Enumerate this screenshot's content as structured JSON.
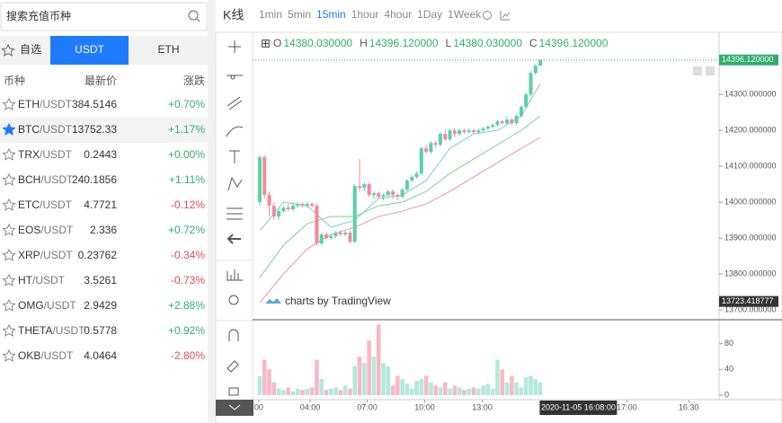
{
  "search": {
    "placeholder": "搜索充值币种"
  },
  "tabs": [
    "自选",
    "USDT",
    "ETH"
  ],
  "active_tab": 1,
  "table": {
    "headers": [
      "币种",
      "最新价",
      "涨跌"
    ],
    "selected_row": 1,
    "rows": [
      {
        "base": "ETH",
        "quote": "/USDT",
        "price": "384.5146",
        "change": "+0.70%"
      },
      {
        "base": "BTC",
        "quote": "/USDT",
        "price": "13752.33",
        "change": "+1.17%"
      },
      {
        "base": "TRX",
        "quote": "/USDT",
        "price": "0.2443",
        "change": "+0.00%"
      },
      {
        "base": "BCH",
        "quote": "/USDT",
        "price": "240.1856",
        "change": "+1.11%"
      },
      {
        "base": "ETC",
        "quote": "/USDT",
        "price": "4.7721",
        "change": "-0.12%"
      },
      {
        "base": "EOS",
        "quote": "/USDT",
        "price": "2.336",
        "change": "+0.72%"
      },
      {
        "base": "XRP",
        "quote": "/USDT",
        "price": "0.23762",
        "change": "-0.34%"
      },
      {
        "base": "HT",
        "quote": "/USDT",
        "price": "3.5261",
        "change": "-0.73%"
      },
      {
        "base": "OMG",
        "quote": "/USDT",
        "price": "2.9429",
        "change": "+2.88%"
      },
      {
        "base": "THETA",
        "quote": "/USDT",
        "price": "0.5778",
        "change": "+0.92%"
      },
      {
        "base": "OKB",
        "quote": "/USDT",
        "price": "4.0464",
        "change": "-2.80%"
      }
    ]
  },
  "toolbar": {
    "label": "K线",
    "intervals": [
      "1min",
      "5min",
      "15min",
      "1hour",
      "4hour",
      "1Day",
      "1Week"
    ],
    "active_interval": 2
  },
  "legend": [
    {
      "key": "O",
      "value": "14380.030000"
    },
    {
      "key": "H",
      "value": "14396.120000"
    },
    {
      "key": "L",
      "value": "14380.030000"
    },
    {
      "key": "C",
      "value": "14396.120000"
    }
  ],
  "watermark": "charts by TradingView",
  "chart_data": {
    "type": "candlestick",
    "open": [
      14000,
      14125,
      14020,
      13990,
      13960,
      13975,
      13985,
      13980,
      13990,
      13995,
      13990,
      13995,
      13990,
      13885,
      13910,
      13900,
      13905,
      13915,
      13910,
      13915,
      13890,
      14045,
      14040,
      14050,
      14020,
      14025,
      14015,
      14020,
      14030,
      14020,
      14015,
      14035,
      14060,
      14070,
      14080,
      14150,
      14140,
      14165,
      14160,
      14190,
      14175,
      14200,
      14190,
      14200,
      14195,
      14200,
      14195,
      14200,
      14205,
      14210,
      14215,
      14225,
      14220,
      14230,
      14220,
      14240,
      14265,
      14300,
      14360,
      14380
    ],
    "high": [
      14130,
      14130,
      14030,
      14000,
      13985,
      13990,
      13995,
      14000,
      14000,
      14000,
      14000,
      14000,
      13995,
      13915,
      13915,
      13910,
      13920,
      13920,
      13920,
      13920,
      14050,
      14120,
      14055,
      14055,
      14030,
      14030,
      14025,
      14035,
      14035,
      14025,
      14040,
      14065,
      14075,
      14085,
      14155,
      14160,
      14170,
      14170,
      14195,
      14200,
      14205,
      14205,
      14205,
      14205,
      14205,
      14205,
      14205,
      14210,
      14215,
      14220,
      14230,
      14230,
      14240,
      14235,
      14245,
      14270,
      14305,
      14365,
      14385,
      14396.12
    ],
    "low": [
      13990,
      14010,
      13960,
      13950,
      13950,
      13970,
      13975,
      13975,
      13985,
      13985,
      13985,
      13985,
      13880,
      13880,
      13895,
      13895,
      13900,
      13905,
      13905,
      13885,
      13885,
      14030,
      14030,
      14015,
      14010,
      14010,
      14005,
      14015,
      14010,
      14005,
      14010,
      14030,
      14055,
      14065,
      14075,
      14135,
      14135,
      14150,
      14155,
      14170,
      14170,
      14180,
      14185,
      14190,
      14190,
      14190,
      14190,
      14195,
      14200,
      14205,
      14210,
      14215,
      14215,
      14215,
      14215,
      14235,
      14260,
      14295,
      14355,
      14380
    ],
    "close": [
      14125,
      14020,
      13990,
      13960,
      13975,
      13985,
      13980,
      13990,
      13995,
      13990,
      13995,
      13990,
      13885,
      13910,
      13900,
      13905,
      13915,
      13910,
      13915,
      13890,
      14045,
      14040,
      14050,
      14020,
      14025,
      14015,
      14020,
      14030,
      14020,
      14015,
      14035,
      14060,
      14070,
      14080,
      14150,
      14140,
      14165,
      14160,
      14190,
      14175,
      14200,
      14190,
      14200,
      14195,
      14200,
      14195,
      14200,
      14205,
      14210,
      14215,
      14225,
      14220,
      14230,
      14220,
      14240,
      14265,
      14300,
      14360,
      14380,
      14396.12
    ],
    "up_color": "#5ccfa5",
    "down_color": "#f08a9a",
    "ylim": [
      13675,
      14468
    ],
    "yticks": [
      {
        "value": 13700,
        "label": "13700.000000"
      },
      {
        "value": 13800,
        "label": "13800.000000"
      },
      {
        "value": 13900,
        "label": "13900.000000"
      },
      {
        "value": 14000,
        "label": "14000.000000"
      },
      {
        "value": 14100,
        "label": "14100.000000"
      },
      {
        "value": 14200,
        "label": "14200.000000"
      },
      {
        "value": 14300,
        "label": "14300.000000"
      }
    ],
    "last_price": {
      "value": 14396.12,
      "label": "14396.120000"
    },
    "marker": {
      "value": 13723.418777,
      "label": "13723.418777"
    },
    "xlim": [
      -1.5,
      96.6
    ],
    "xticks": [
      {
        "value": -0.2,
        "label": "00"
      },
      {
        "value": 10.6,
        "label": "04:00"
      },
      {
        "value": 22.6,
        "label": "07:00"
      },
      {
        "value": 34.7,
        "label": "10:00"
      },
      {
        "value": 46.8,
        "label": "13:00"
      },
      {
        "value": 77.2,
        "label": "17:00"
      },
      {
        "value": 90.2,
        "label": "16:30"
      }
    ],
    "crosshair": {
      "value": 67,
      "label": "2020-11-05 16:08:00"
    },
    "moving_averages": [
      {
        "color": "#7ec8e8",
        "x": [
          0,
          5,
          10,
          15,
          20,
          25,
          30,
          35,
          40,
          45,
          50,
          55,
          59
        ],
        "values": [
          13920,
          14000,
          13990,
          13930,
          13950,
          14010,
          14020,
          14060,
          14150,
          14190,
          14200,
          14240,
          14330
        ]
      },
      {
        "color": "#7cd08c",
        "x": [
          0,
          5,
          10,
          15,
          20,
          25,
          30,
          35,
          40,
          45,
          50,
          55,
          59
        ],
        "values": [
          13790,
          13880,
          13940,
          13960,
          13960,
          13990,
          14000,
          14030,
          14080,
          14120,
          14160,
          14200,
          14240
        ]
      },
      {
        "color": "#e58fb4",
        "x": [
          0,
          5,
          10,
          15,
          20,
          25,
          30,
          35,
          40,
          45,
          50,
          55,
          59
        ],
        "values": [
          13720,
          13800,
          13870,
          13910,
          13930,
          13960,
          13975,
          13995,
          14030,
          14070,
          14110,
          14150,
          14180
        ]
      }
    ],
    "volume": {
      "values": [
        30,
        55,
        40,
        20,
        10,
        8,
        12,
        6,
        10,
        8,
        10,
        12,
        55,
        25,
        8,
        10,
        12,
        8,
        15,
        10,
        45,
        60,
        50,
        85,
        60,
        110,
        50,
        45,
        15,
        30,
        25,
        18,
        10,
        22,
        25,
        30,
        20,
        15,
        12,
        20,
        10,
        15,
        12,
        8,
        10,
        12,
        10,
        15,
        18,
        10,
        55,
        40,
        20,
        30,
        20,
        12,
        28,
        30,
        25,
        20
      ],
      "ylim": [
        -7,
        116
      ],
      "yticks": [
        0,
        40,
        80
      ],
      "up_color": "#b3e8dc",
      "down_color": "#f9b8c4"
    }
  }
}
